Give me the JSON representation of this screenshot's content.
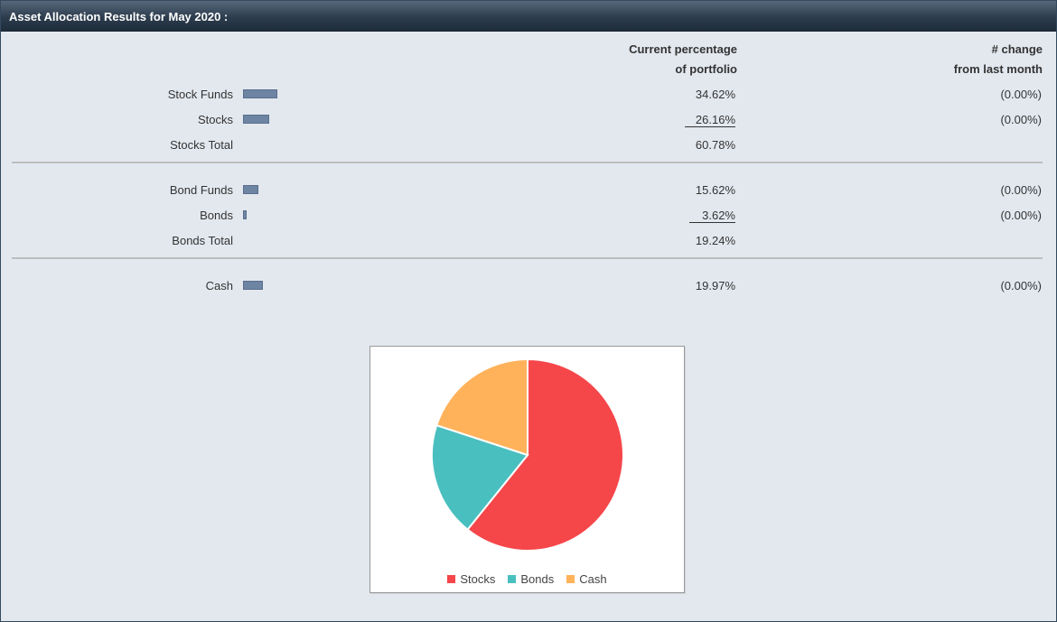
{
  "title": "Asset Allocation Results for May 2020 :",
  "headers": {
    "pct_line1": "Current percentage",
    "pct_line2": "of portfolio",
    "chg_line1": "# change",
    "chg_line2": "from last month"
  },
  "rows": [
    {
      "label": "Stock Funds",
      "pct": "34.62%",
      "change": "(0.00%)",
      "bar_fraction": 0.3462
    },
    {
      "label": "Stocks",
      "pct": "26.16%",
      "change": "(0.00%)",
      "bar_fraction": 0.2616
    },
    {
      "label": "Stocks Total",
      "pct": "60.78%",
      "change": ""
    },
    {
      "label": "Bond Funds",
      "pct": "15.62%",
      "change": "(0.00%)",
      "bar_fraction": 0.1562
    },
    {
      "label": "Bonds",
      "pct": "3.62%",
      "change": "(0.00%)",
      "bar_fraction": 0.0362
    },
    {
      "label": "Bonds Total",
      "pct": "19.24%",
      "change": ""
    },
    {
      "label": "Cash",
      "pct": "19.97%",
      "change": "(0.00%)",
      "bar_fraction": 0.1997
    }
  ],
  "chart_data": {
    "type": "pie",
    "categories": [
      "Stocks",
      "Bonds",
      "Cash"
    ],
    "values": [
      60.78,
      19.24,
      19.97
    ],
    "colors": [
      "#f5464a",
      "#4abfbf",
      "#ffb25a"
    ],
    "legend": "bottom"
  }
}
